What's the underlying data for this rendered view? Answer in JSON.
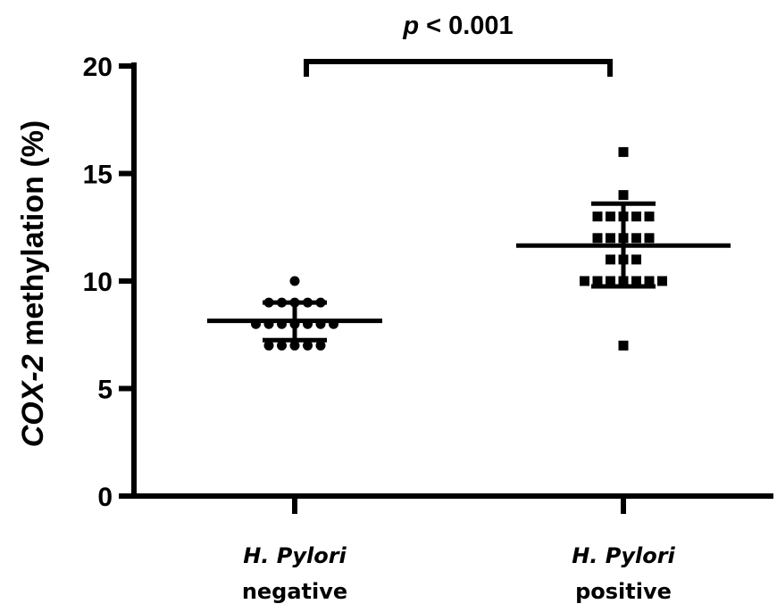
{
  "chart_data": {
    "type": "scatter",
    "ylabel_italic": "COX-2",
    "ylabel_rest": " methylation (%)",
    "ylim": [
      0,
      20
    ],
    "yticks": [
      "0",
      "5",
      "10",
      "15",
      "20"
    ],
    "groups": [
      {
        "name_italic": "H. Pylori",
        "name_rest": "negative",
        "marker": "circle",
        "mean": 8.15,
        "sd_low": 7.25,
        "sd_high": 9.0,
        "points": [
          {
            "y": 10,
            "n": 1
          },
          {
            "y": 9,
            "n": 5
          },
          {
            "y": 8,
            "n": 7
          },
          {
            "y": 7,
            "n": 5
          }
        ]
      },
      {
        "name_italic": "H. Pylori",
        "name_rest": "positive",
        "marker": "square",
        "mean": 11.65,
        "sd_low": 9.75,
        "sd_high": 13.6,
        "points": [
          {
            "y": 16,
            "n": 1
          },
          {
            "y": 14,
            "n": 1
          },
          {
            "y": 13,
            "n": 5
          },
          {
            "y": 12,
            "n": 5
          },
          {
            "y": 11,
            "n": 3
          },
          {
            "y": 10,
            "n": 7
          },
          {
            "y": 7,
            "n": 1
          }
        ]
      }
    ],
    "annotation": {
      "p_italic": "p",
      "p_rest": " < 0.001"
    }
  }
}
